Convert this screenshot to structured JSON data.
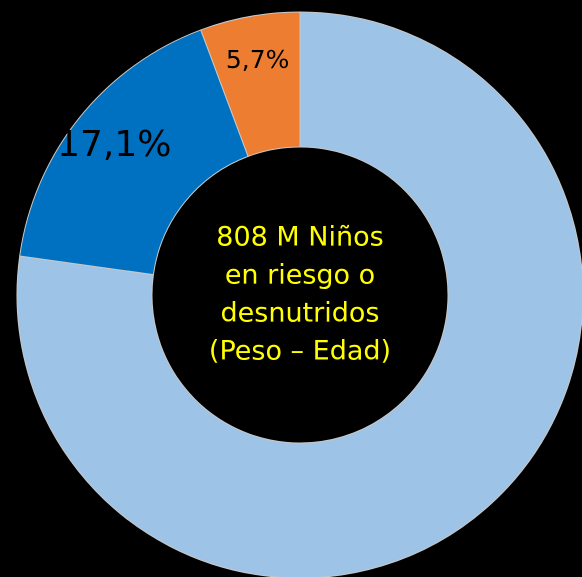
{
  "chart_data": {
    "type": "donut",
    "values": [
      77.2,
      17.1,
      5.7
    ],
    "value_labels": [
      null,
      "17,1%",
      "5,7%"
    ],
    "colors": [
      "#9dc3e6",
      "#0070c0",
      "#ed7d31"
    ],
    "center_label": [
      "808 M Niños",
      "en riesgo o",
      "desnutridos",
      "(Peso – Edad)"
    ]
  }
}
